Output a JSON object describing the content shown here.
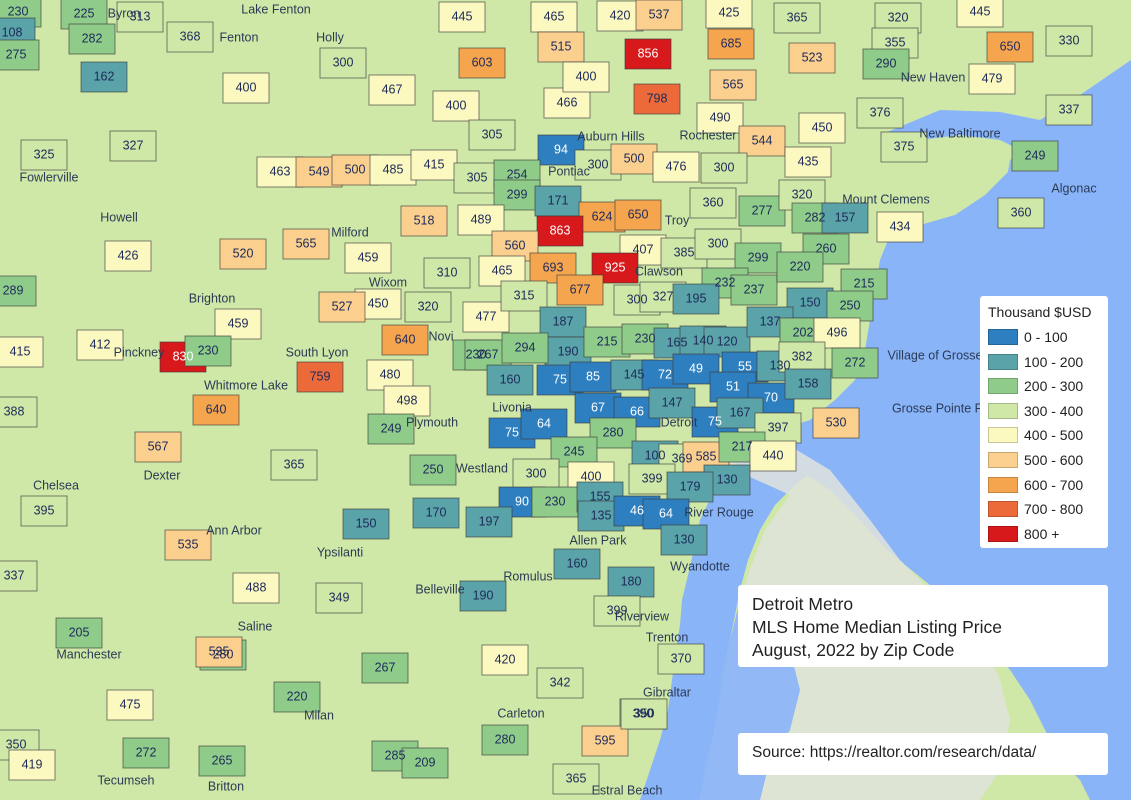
{
  "title": {
    "line1": "Detroit Metro",
    "line2": "MLS Home Median Listing Price",
    "line3": "August, 2022 by Zip Code"
  },
  "source": "Source: https://realtor.com/research/data/",
  "legend": {
    "title": "Thousand $USD",
    "items": [
      {
        "label": "0 - 100",
        "color": "#2e7fbf"
      },
      {
        "label": "100 - 200",
        "color": "#5aa3a8"
      },
      {
        "label": "200 - 300",
        "color": "#8fcc8a"
      },
      {
        "label": "300 - 400",
        "color": "#cfe8a8"
      },
      {
        "label": "400 - 500",
        "color": "#fbf8c0"
      },
      {
        "label": "500 - 600",
        "color": "#fbd08e"
      },
      {
        "label": "600 - 700",
        "color": "#f6a54f"
      },
      {
        "label": "700 - 800",
        "color": "#ec6a3a"
      },
      {
        "label": "800 +",
        "color": "#d7191c"
      }
    ]
  },
  "places": [
    "Byron",
    "Lake Fenton",
    "Fenton",
    "Holly",
    "Fowlerville",
    "Howell",
    "Milford",
    "Wixom",
    "Brighton",
    "Pinckney",
    "South Lyon",
    "Novi",
    "Whitmore Lake",
    "Livonia",
    "Plymouth",
    "Westland",
    "Chelsea",
    "Dexter",
    "Ann Arbor",
    "Ypsilanti",
    "Belleville",
    "Romulus",
    "Allen Park",
    "Detroit",
    "River Rouge",
    "Wyandotte",
    "Saline",
    "Manchester",
    "Milan",
    "Carleton",
    "Tecumseh",
    "Britton",
    "Riverview",
    "Trenton",
    "Gibraltar",
    "Estral Beach",
    "Auburn Hills",
    "Pontiac",
    "Rochester",
    "Troy",
    "Clawson",
    "Village of Grosse",
    "Grosse Pointe Farms",
    "Mount Clemens",
    "New Haven",
    "New Baltimore",
    "Algonac"
  ],
  "zip_values": [
    230,
    225,
    313,
    368,
    108,
    275,
    282,
    162,
    400,
    327,
    325,
    426,
    300,
    467,
    400,
    445,
    465,
    420,
    537,
    425,
    365,
    320,
    355,
    290,
    330,
    603,
    515,
    856,
    685,
    523,
    650,
    445,
    798,
    565,
    466,
    400,
    479,
    376,
    337,
    375,
    305,
    94,
    300,
    490,
    450,
    544,
    463,
    549,
    500,
    485,
    415,
    305,
    254,
    299,
    500,
    476,
    300,
    435,
    249,
    171,
    624,
    650,
    360,
    277,
    320,
    282,
    157,
    360,
    518,
    489,
    863,
    560,
    407,
    385,
    300,
    299,
    260,
    434,
    520,
    565,
    459,
    310,
    465,
    693,
    925,
    232,
    237,
    220,
    215,
    289,
    459,
    450,
    527,
    320,
    477,
    315,
    677,
    300,
    327,
    195,
    150,
    250,
    415,
    412,
    830,
    230,
    640,
    230,
    187,
    190,
    215,
    230,
    165,
    140,
    120,
    137,
    202,
    496,
    759,
    480,
    267,
    294,
    160,
    75,
    85,
    145,
    72,
    49,
    55,
    130,
    382,
    272,
    388,
    640,
    498,
    249,
    75,
    67,
    66,
    147,
    51,
    70,
    158,
    64,
    280,
    75,
    167,
    397,
    530,
    567,
    365,
    250,
    245,
    100,
    369,
    585,
    217,
    440,
    395,
    170,
    300,
    400,
    399,
    130,
    179,
    90,
    230,
    155,
    197,
    150,
    135,
    46,
    64,
    130,
    535,
    160,
    180,
    488,
    190,
    349,
    337,
    399,
    205,
    280,
    535,
    220,
    267,
    420,
    370,
    475,
    342,
    390,
    350,
    595,
    272,
    265,
    285,
    209,
    280,
    350,
    419,
    365
  ]
}
